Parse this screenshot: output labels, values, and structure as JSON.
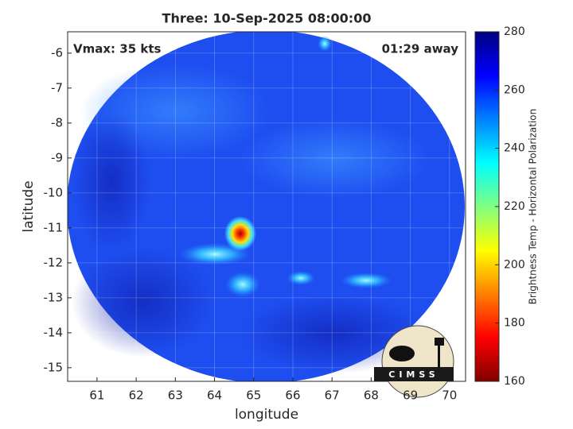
{
  "chart_data": {
    "type": "image",
    "title": "Three: 10-Sep-2025 08:00:00",
    "xlabel": "longitude",
    "ylabel": "latitude",
    "annotations": [
      "Vmax: 35 kts",
      "01:29 away"
    ],
    "xlim": [
      60.25,
      70.41
    ],
    "xticks": [
      61,
      62,
      63,
      64,
      65,
      66,
      67,
      68,
      69,
      70
    ],
    "ylim": [
      -15.39,
      -5.39
    ],
    "yticks": [
      -15,
      -14,
      -13,
      -12,
      -11,
      -10,
      -9,
      -8,
      -7,
      -6
    ],
    "grid": true,
    "colorbar": {
      "label": "Brightness Temp - Horizontal Polarization",
      "clim": [
        160,
        280
      ],
      "ticks": [
        160,
        180,
        200,
        220,
        240,
        260,
        280
      ],
      "colormap": [
        "#800000",
        "#ff0000",
        "#ff8000",
        "#ffff00",
        "#80ff80",
        "#00ffff",
        "#0080ff",
        "#0000ff",
        "#000080"
      ]
    },
    "logo": "CIMSS"
  }
}
